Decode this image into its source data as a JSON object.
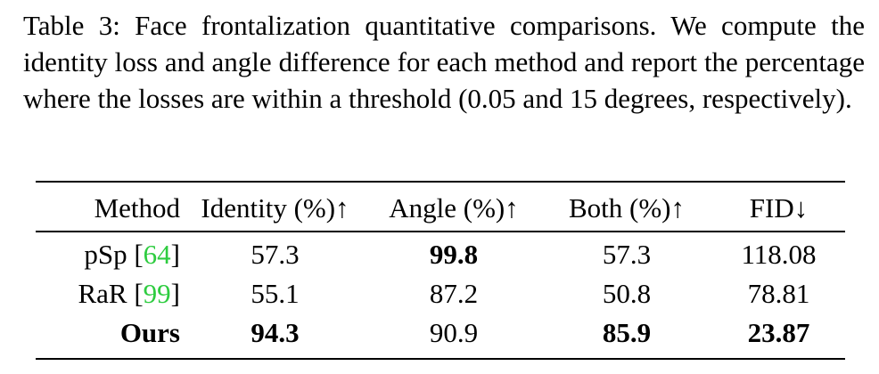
{
  "caption": "Table 3: Face frontalization quantitative comparisons. We compute the identity loss and angle difference for each method and report the percentage where the losses are within a threshold (0.05 and 15 degrees, respectively).",
  "table": {
    "headers": [
      "Method",
      "Identity (%)↑",
      "Angle (%)↑",
      "Both (%)↑",
      "FID↓"
    ],
    "rows": [
      {
        "method": "pSp",
        "cite": "64",
        "identity": "57.3",
        "angle": "99.8",
        "both": "57.3",
        "fid": "118.08"
      },
      {
        "method": "RaR",
        "cite": "99",
        "identity": "55.1",
        "angle": "87.2",
        "both": "50.8",
        "fid": "78.81"
      },
      {
        "method": "Ours",
        "identity": "94.3",
        "angle": "90.9",
        "both": "85.9",
        "fid": "23.87"
      }
    ]
  },
  "colors": {
    "citation": "#2ecc40"
  }
}
